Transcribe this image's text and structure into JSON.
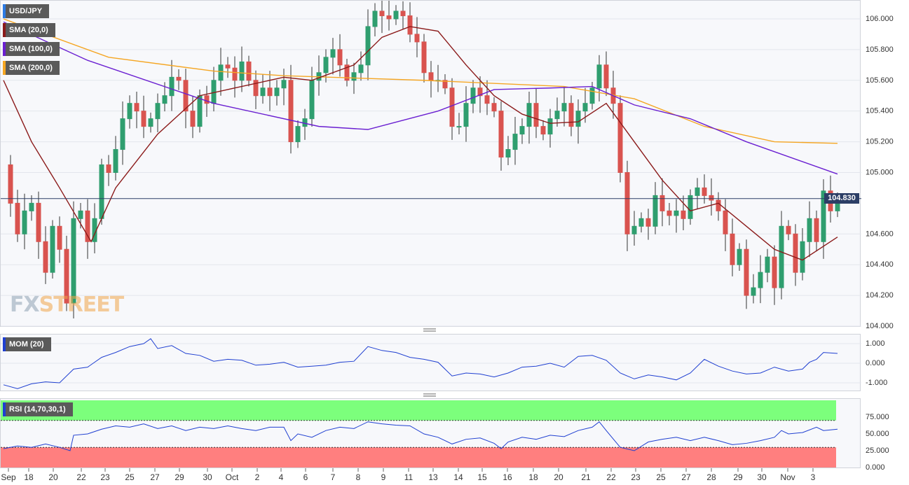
{
  "chart_data": [
    {
      "type": "candlestick",
      "symbol": "USD/JPY",
      "ylim": [
        104.0,
        106.1
      ],
      "y_ticks": [
        "106.000",
        "105.800",
        "105.600",
        "105.400",
        "105.200",
        "105.000",
        "104.600",
        "104.400",
        "104.200",
        "104.000"
      ],
      "x_ticks": [
        "Sep",
        "18",
        "20",
        "22",
        "23",
        "25",
        "27",
        "29",
        "30",
        "Oct",
        "2",
        "4",
        "6",
        "7",
        "8",
        "9",
        "11",
        "13",
        "14",
        "15",
        "16",
        "18",
        "20",
        "21",
        "22",
        "23",
        "25",
        "27",
        "28",
        "29",
        "30",
        "Nov",
        "3"
      ],
      "last_price": "104.830",
      "indicators": [
        {
          "name": "SMA (20,0)",
          "color": "#8b1a1a"
        },
        {
          "name": "SMA (100,0)",
          "color": "#6a1fd1"
        },
        {
          "name": "SMA (200,0)",
          "color": "#f5a623"
        }
      ],
      "sma200": [
        [
          0,
          106.0
        ],
        [
          150,
          105.75
        ],
        [
          300,
          105.66
        ],
        [
          400,
          105.63
        ],
        [
          600,
          105.6
        ],
        [
          800,
          105.56
        ],
        [
          900,
          105.48
        ],
        [
          1000,
          105.3
        ],
        [
          1100,
          105.2
        ],
        [
          1190,
          105.19
        ]
      ],
      "sma100": [
        [
          0,
          105.98
        ],
        [
          120,
          105.73
        ],
        [
          300,
          105.45
        ],
        [
          450,
          105.3
        ],
        [
          520,
          105.28
        ],
        [
          620,
          105.4
        ],
        [
          700,
          105.54
        ],
        [
          780,
          105.55
        ],
        [
          840,
          105.56
        ],
        [
          900,
          105.44
        ],
        [
          980,
          105.35
        ],
        [
          1060,
          105.2
        ],
        [
          1190,
          104.99
        ]
      ],
      "sma20": [
        [
          0,
          105.6
        ],
        [
          40,
          105.2
        ],
        [
          80,
          104.9
        ],
        [
          125,
          104.55
        ],
        [
          160,
          104.9
        ],
        [
          220,
          105.25
        ],
        [
          280,
          105.5
        ],
        [
          330,
          105.55
        ],
        [
          400,
          105.62
        ],
        [
          440,
          105.6
        ],
        [
          500,
          105.7
        ],
        [
          540,
          105.88
        ],
        [
          580,
          105.95
        ],
        [
          620,
          105.92
        ],
        [
          660,
          105.7
        ],
        [
          700,
          105.5
        ],
        [
          740,
          105.38
        ],
        [
          780,
          105.32
        ],
        [
          820,
          105.33
        ],
        [
          860,
          105.45
        ],
        [
          900,
          105.2
        ],
        [
          940,
          104.95
        ],
        [
          980,
          104.75
        ],
        [
          1020,
          104.8
        ],
        [
          1060,
          104.65
        ],
        [
          1100,
          104.5
        ],
        [
          1140,
          104.43
        ],
        [
          1190,
          104.58
        ]
      ],
      "candles": [
        {
          "d": "O",
          "v": 104.95
        },
        {
          "d": "H",
          "v": 105.2
        },
        {
          "d": "L",
          "v": 104.6
        },
        {
          "d": "C",
          "v": 104.8
        }
      ],
      "price_path": [
        [
          0,
          105.05
        ],
        [
          10,
          104.8
        ],
        [
          20,
          104.6
        ],
        [
          30,
          104.75
        ],
        [
          40,
          104.8
        ],
        [
          50,
          104.55
        ],
        [
          60,
          104.35
        ],
        [
          70,
          104.65
        ],
        [
          80,
          104.5
        ],
        [
          90,
          104.15
        ],
        [
          100,
          104.7
        ],
        [
          110,
          104.75
        ],
        [
          120,
          104.55
        ],
        [
          130,
          104.7
        ],
        [
          140,
          105.05
        ],
        [
          150,
          105.0
        ],
        [
          160,
          105.15
        ],
        [
          170,
          105.35
        ],
        [
          180,
          105.45
        ],
        [
          190,
          105.4
        ],
        [
          200,
          105.3
        ],
        [
          210,
          105.35
        ],
        [
          220,
          105.45
        ],
        [
          230,
          105.5
        ],
        [
          240,
          105.62
        ],
        [
          250,
          105.6
        ],
        [
          260,
          105.4
        ],
        [
          270,
          105.3
        ],
        [
          280,
          105.5
        ],
        [
          290,
          105.45
        ],
        [
          300,
          105.6
        ],
        [
          310,
          105.7
        ],
        [
          320,
          105.68
        ],
        [
          330,
          105.6
        ],
        [
          340,
          105.72
        ],
        [
          350,
          105.6
        ],
        [
          360,
          105.5
        ],
        [
          370,
          105.55
        ],
        [
          380,
          105.5
        ],
        [
          390,
          105.55
        ],
        [
          400,
          105.6
        ],
        [
          410,
          105.2
        ],
        [
          420,
          105.3
        ],
        [
          430,
          105.35
        ],
        [
          440,
          105.6
        ],
        [
          450,
          105.65
        ],
        [
          460,
          105.75
        ],
        [
          470,
          105.8
        ],
        [
          480,
          105.7
        ],
        [
          490,
          105.6
        ],
        [
          500,
          105.65
        ],
        [
          510,
          105.7
        ],
        [
          520,
          105.95
        ],
        [
          530,
          106.05
        ],
        [
          540,
          106.02
        ],
        [
          550,
          106.0
        ],
        [
          560,
          106.05
        ],
        [
          570,
          106.02
        ],
        [
          580,
          105.9
        ],
        [
          590,
          105.85
        ],
        [
          600,
          105.65
        ],
        [
          610,
          105.6
        ],
        [
          620,
          105.6
        ],
        [
          630,
          105.55
        ],
        [
          640,
          105.3
        ],
        [
          650,
          105.3
        ],
        [
          660,
          105.45
        ],
        [
          670,
          105.55
        ],
        [
          680,
          105.5
        ],
        [
          690,
          105.45
        ],
        [
          700,
          105.4
        ],
        [
          710,
          105.1
        ],
        [
          720,
          105.15
        ],
        [
          730,
          105.25
        ],
        [
          740,
          105.3
        ],
        [
          750,
          105.45
        ],
        [
          760,
          105.3
        ],
        [
          770,
          105.25
        ],
        [
          780,
          105.35
        ],
        [
          790,
          105.4
        ],
        [
          800,
          105.45
        ],
        [
          810,
          105.3
        ],
        [
          820,
          105.4
        ],
        [
          830,
          105.45
        ],
        [
          840,
          105.55
        ],
        [
          850,
          105.7
        ],
        [
          860,
          105.55
        ],
        [
          870,
          105.45
        ],
        [
          880,
          105.0
        ],
        [
          890,
          104.6
        ],
        [
          900,
          104.65
        ],
        [
          910,
          104.7
        ],
        [
          920,
          104.65
        ],
        [
          930,
          104.85
        ],
        [
          940,
          104.75
        ],
        [
          950,
          104.72
        ],
        [
          960,
          104.75
        ],
        [
          970,
          104.7
        ],
        [
          980,
          104.85
        ],
        [
          990,
          104.9
        ],
        [
          1000,
          104.85
        ],
        [
          1010,
          104.82
        ],
        [
          1020,
          104.75
        ],
        [
          1030,
          104.6
        ],
        [
          1040,
          104.4
        ],
        [
          1050,
          104.5
        ],
        [
          1060,
          104.2
        ],
        [
          1070,
          104.25
        ],
        [
          1080,
          104.35
        ],
        [
          1090,
          104.45
        ],
        [
          1100,
          104.25
        ],
        [
          1110,
          104.65
        ],
        [
          1120,
          104.6
        ],
        [
          1130,
          104.35
        ],
        [
          1140,
          104.55
        ],
        [
          1150,
          104.7
        ],
        [
          1160,
          104.55
        ],
        [
          1170,
          104.88
        ],
        [
          1180,
          104.75
        ],
        [
          1190,
          104.83
        ]
      ]
    },
    {
      "type": "line",
      "name": "MOM (20)",
      "ylim": [
        -1.25,
        1.25
      ],
      "y_ticks": [
        "1.000",
        "0.000",
        "-1.000"
      ],
      "color": "#1f3fd1",
      "points": [
        [
          0,
          -1.1
        ],
        [
          20,
          -1.3
        ],
        [
          40,
          -1.05
        ],
        [
          60,
          -0.95
        ],
        [
          80,
          -1.0
        ],
        [
          100,
          -0.3
        ],
        [
          120,
          -0.2
        ],
        [
          140,
          0.3
        ],
        [
          160,
          0.55
        ],
        [
          180,
          0.85
        ],
        [
          200,
          1.0
        ],
        [
          210,
          1.25
        ],
        [
          220,
          0.75
        ],
        [
          240,
          0.9
        ],
        [
          260,
          0.5
        ],
        [
          280,
          0.4
        ],
        [
          300,
          0.1
        ],
        [
          320,
          0.2
        ],
        [
          340,
          0.15
        ],
        [
          360,
          -0.1
        ],
        [
          380,
          -0.05
        ],
        [
          400,
          0.05
        ],
        [
          420,
          -0.2
        ],
        [
          440,
          -0.15
        ],
        [
          460,
          -0.1
        ],
        [
          480,
          0.05
        ],
        [
          500,
          0.1
        ],
        [
          520,
          0.85
        ],
        [
          540,
          0.65
        ],
        [
          560,
          0.55
        ],
        [
          580,
          0.3
        ],
        [
          600,
          0.2
        ],
        [
          620,
          0.05
        ],
        [
          640,
          -0.65
        ],
        [
          660,
          -0.5
        ],
        [
          680,
          -0.55
        ],
        [
          700,
          -0.7
        ],
        [
          720,
          -0.5
        ],
        [
          740,
          -0.2
        ],
        [
          760,
          -0.15
        ],
        [
          780,
          0.0
        ],
        [
          800,
          -0.2
        ],
        [
          820,
          0.35
        ],
        [
          840,
          0.4
        ],
        [
          860,
          0.15
        ],
        [
          880,
          -0.5
        ],
        [
          900,
          -0.8
        ],
        [
          920,
          -0.6
        ],
        [
          940,
          -0.7
        ],
        [
          960,
          -0.85
        ],
        [
          980,
          -0.5
        ],
        [
          1000,
          0.2
        ],
        [
          1020,
          -0.15
        ],
        [
          1040,
          -0.4
        ],
        [
          1060,
          -0.55
        ],
        [
          1080,
          -0.5
        ],
        [
          1100,
          -0.2
        ],
        [
          1120,
          -0.4
        ],
        [
          1140,
          -0.3
        ],
        [
          1150,
          0.05
        ],
        [
          1160,
          0.2
        ],
        [
          1170,
          0.55
        ],
        [
          1190,
          0.5
        ]
      ]
    },
    {
      "type": "line",
      "name": "RSI (14,70,30,1)",
      "ylim": [
        0,
        100
      ],
      "y_ticks": [
        "75.000",
        "50.000",
        "25.000",
        "0.000"
      ],
      "color": "#1f3fd1",
      "overbought": 70,
      "oversold": 30,
      "overbought_color": "#7cff7c",
      "oversold_color": "#ff7f7f",
      "points": [
        [
          0,
          28
        ],
        [
          20,
          32
        ],
        [
          40,
          30
        ],
        [
          60,
          35
        ],
        [
          80,
          30
        ],
        [
          95,
          25
        ],
        [
          100,
          48
        ],
        [
          120,
          50
        ],
        [
          140,
          57
        ],
        [
          160,
          62
        ],
        [
          180,
          60
        ],
        [
          200,
          65
        ],
        [
          220,
          58
        ],
        [
          240,
          62
        ],
        [
          260,
          55
        ],
        [
          280,
          60
        ],
        [
          300,
          58
        ],
        [
          320,
          62
        ],
        [
          340,
          58
        ],
        [
          360,
          55
        ],
        [
          380,
          60
        ],
        [
          400,
          60
        ],
        [
          410,
          40
        ],
        [
          420,
          50
        ],
        [
          440,
          45
        ],
        [
          460,
          55
        ],
        [
          480,
          60
        ],
        [
          500,
          58
        ],
        [
          520,
          68
        ],
        [
          540,
          65
        ],
        [
          560,
          63
        ],
        [
          580,
          62
        ],
        [
          600,
          50
        ],
        [
          620,
          45
        ],
        [
          640,
          35
        ],
        [
          660,
          42
        ],
        [
          680,
          44
        ],
        [
          700,
          36
        ],
        [
          710,
          28
        ],
        [
          720,
          38
        ],
        [
          740,
          45
        ],
        [
          760,
          42
        ],
        [
          780,
          48
        ],
        [
          800,
          46
        ],
        [
          820,
          55
        ],
        [
          840,
          60
        ],
        [
          850,
          68
        ],
        [
          860,
          55
        ],
        [
          880,
          30
        ],
        [
          900,
          25
        ],
        [
          920,
          38
        ],
        [
          940,
          42
        ],
        [
          960,
          45
        ],
        [
          980,
          40
        ],
        [
          1000,
          45
        ],
        [
          1020,
          40
        ],
        [
          1040,
          34
        ],
        [
          1060,
          36
        ],
        [
          1080,
          40
        ],
        [
          1100,
          45
        ],
        [
          1110,
          55
        ],
        [
          1120,
          50
        ],
        [
          1140,
          52
        ],
        [
          1160,
          60
        ],
        [
          1170,
          55
        ],
        [
          1190,
          57
        ]
      ]
    }
  ],
  "legends": {
    "price": [
      "USD/JPY",
      "SMA (20,0)",
      "SMA (100,0)",
      "SMA (200,0)"
    ],
    "mom": "MOM (20)",
    "rsi": "RSI (14,70,30,1)"
  },
  "watermark": {
    "part1": "FX",
    "part2": "STREET"
  }
}
